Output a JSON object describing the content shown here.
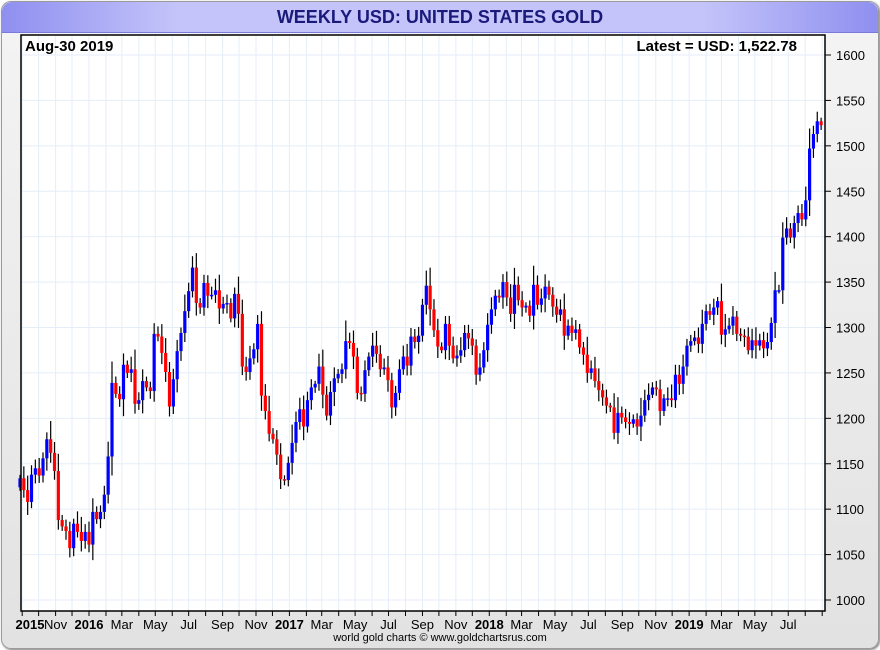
{
  "title": "WEEKLY USD: UNITED STATES GOLD",
  "footer": "world gold charts © www.goldchartsrus.com",
  "colors": {
    "up": "#0000ff",
    "down": "#ff0000",
    "grid": "#e4eef8",
    "title_text": "#1a1a7a"
  },
  "chart_data": {
    "type": "candlestick",
    "title": "WEEKLY USD: UNITED STATES GOLD",
    "date_label": "Aug-30  2019",
    "latest_label": "Latest = USD: 1,522.78",
    "y_axis_position": "right",
    "ylim": [
      990,
      1620
    ],
    "y_ticks": [
      1000,
      1050,
      1100,
      1150,
      1200,
      1250,
      1300,
      1350,
      1400,
      1450,
      1500,
      1550,
      1600
    ],
    "x_ticks": [
      {
        "date": "2015-09-01",
        "label": "2015",
        "bold": true
      },
      {
        "date": "2015-11-01",
        "label": "Nov"
      },
      {
        "date": "2016-01-01",
        "label": "2016",
        "bold": true
      },
      {
        "date": "2016-03-01",
        "label": "Mar"
      },
      {
        "date": "2016-05-01",
        "label": "May"
      },
      {
        "date": "2016-07-01",
        "label": "Jul"
      },
      {
        "date": "2016-09-01",
        "label": "Sep"
      },
      {
        "date": "2016-11-01",
        "label": "Nov"
      },
      {
        "date": "2017-01-01",
        "label": "2017",
        "bold": true
      },
      {
        "date": "2017-03-01",
        "label": "Mar"
      },
      {
        "date": "2017-05-01",
        "label": "May"
      },
      {
        "date": "2017-07-01",
        "label": "Jul"
      },
      {
        "date": "2017-09-01",
        "label": "Sep"
      },
      {
        "date": "2017-11-01",
        "label": "Nov"
      },
      {
        "date": "2018-01-01",
        "label": "2018",
        "bold": true
      },
      {
        "date": "2018-03-01",
        "label": "Mar"
      },
      {
        "date": "2018-05-01",
        "label": "May"
      },
      {
        "date": "2018-07-01",
        "label": "Jul"
      },
      {
        "date": "2018-09-01",
        "label": "Sep"
      },
      {
        "date": "2018-11-01",
        "label": "Nov"
      },
      {
        "date": "2019-01-01",
        "label": "2019",
        "bold": true
      },
      {
        "date": "2019-03-01",
        "label": "Mar"
      },
      {
        "date": "2019-05-01",
        "label": "May"
      },
      {
        "date": "2019-07-01",
        "label": "Jul"
      }
    ],
    "grid": true,
    "first_week": "2015-08-28",
    "first_open": 1124,
    "weekly_close": [
      1134,
      1121,
      1108,
      1138,
      1145,
      1137,
      1156,
      1177,
      1162,
      1142,
      1088,
      1081,
      1076,
      1057,
      1084,
      1075,
      1065,
      1075,
      1061,
      1097,
      1089,
      1097,
      1116,
      1158,
      1239,
      1227,
      1221,
      1259,
      1250,
      1254,
      1216,
      1220,
      1241,
      1234,
      1230,
      1293,
      1290,
      1272,
      1251,
      1213,
      1243,
      1274,
      1294,
      1318,
      1340,
      1366,
      1327,
      1322,
      1349,
      1335,
      1336,
      1341,
      1321,
      1326,
      1327,
      1310,
      1337,
      1315,
      1257,
      1251,
      1266,
      1276,
      1304,
      1225,
      1208,
      1183,
      1177,
      1160,
      1133,
      1132,
      1151,
      1173,
      1196,
      1210,
      1191,
      1220,
      1234,
      1238,
      1257,
      1226,
      1203,
      1229,
      1244,
      1249,
      1254,
      1285,
      1283,
      1268,
      1228,
      1227,
      1253,
      1268,
      1280,
      1271,
      1254,
      1256,
      1242,
      1212,
      1228,
      1254,
      1268,
      1258,
      1290,
      1284,
      1291,
      1325,
      1346,
      1320,
      1297,
      1279,
      1275,
      1304,
      1280,
      1266,
      1269,
      1275,
      1294,
      1288,
      1280,
      1248,
      1256,
      1275,
      1303,
      1320,
      1335,
      1333,
      1350,
      1333,
      1315,
      1347,
      1330,
      1322,
      1324,
      1313,
      1347,
      1325,
      1332,
      1345,
      1336,
      1323,
      1314,
      1320,
      1291,
      1302,
      1294,
      1298,
      1278,
      1270,
      1250,
      1255,
      1241,
      1231,
      1223,
      1214,
      1212,
      1184,
      1206,
      1201,
      1196,
      1194,
      1199,
      1191,
      1203,
      1220,
      1226,
      1234,
      1232,
      1208,
      1222,
      1222,
      1220,
      1248,
      1238,
      1257,
      1280,
      1285,
      1289,
      1282,
      1304,
      1318,
      1314,
      1322,
      1329,
      1292,
      1298,
      1302,
      1312,
      1293,
      1291,
      1290,
      1275,
      1286,
      1280,
      1286,
      1277,
      1284,
      1305,
      1341,
      1341,
      1399,
      1409,
      1399,
      1415,
      1426,
      1419,
      1440,
      1497,
      1513,
      1527,
      1522.78
    ]
  }
}
